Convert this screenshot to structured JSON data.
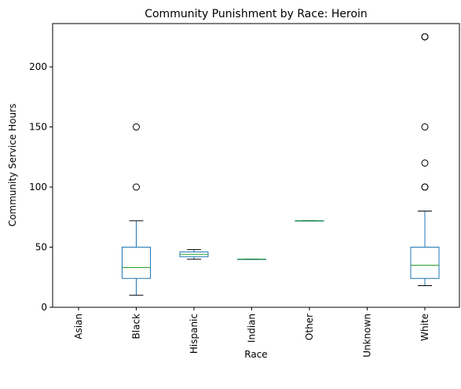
{
  "chart_data": {
    "type": "boxplot",
    "title": "Community Punishment by Race: Heroin",
    "xlabel": "Race",
    "ylabel": "Community Service Hours",
    "categories": [
      "Asian",
      "Black",
      "Hispanic",
      "Indian",
      "Other",
      "Unknown",
      "White"
    ],
    "y_ticks": [
      0,
      50,
      100,
      150,
      200
    ],
    "ylim": [
      0,
      236
    ],
    "grid": false,
    "colors": {
      "box": "#1f77b4",
      "median": "#2ca02c",
      "whisker_cap": "#000000",
      "outlier": "#000000"
    },
    "boxes": [
      {
        "category": "Asian",
        "empty": true
      },
      {
        "category": "Black",
        "whislo": 10,
        "q1": 24,
        "median": 33,
        "q3": 50,
        "whishi": 72,
        "fliers": [
          100,
          150
        ]
      },
      {
        "category": "Hispanic",
        "whislo": 40,
        "q1": 42,
        "median": 44,
        "q3": 46,
        "whishi": 48,
        "fliers": []
      },
      {
        "category": "Indian",
        "whislo": 40,
        "q1": 40,
        "median": 40,
        "q3": 40,
        "whishi": 40,
        "fliers": []
      },
      {
        "category": "Other",
        "whislo": 72,
        "q1": 72,
        "median": 72,
        "q3": 72,
        "whishi": 72,
        "fliers": []
      },
      {
        "category": "Unknown",
        "empty": true
      },
      {
        "category": "White",
        "whislo": 18,
        "q1": 24,
        "median": 35,
        "q3": 50,
        "whishi": 80,
        "fliers": [
          100,
          100,
          120,
          150,
          225,
          225
        ]
      }
    ]
  }
}
